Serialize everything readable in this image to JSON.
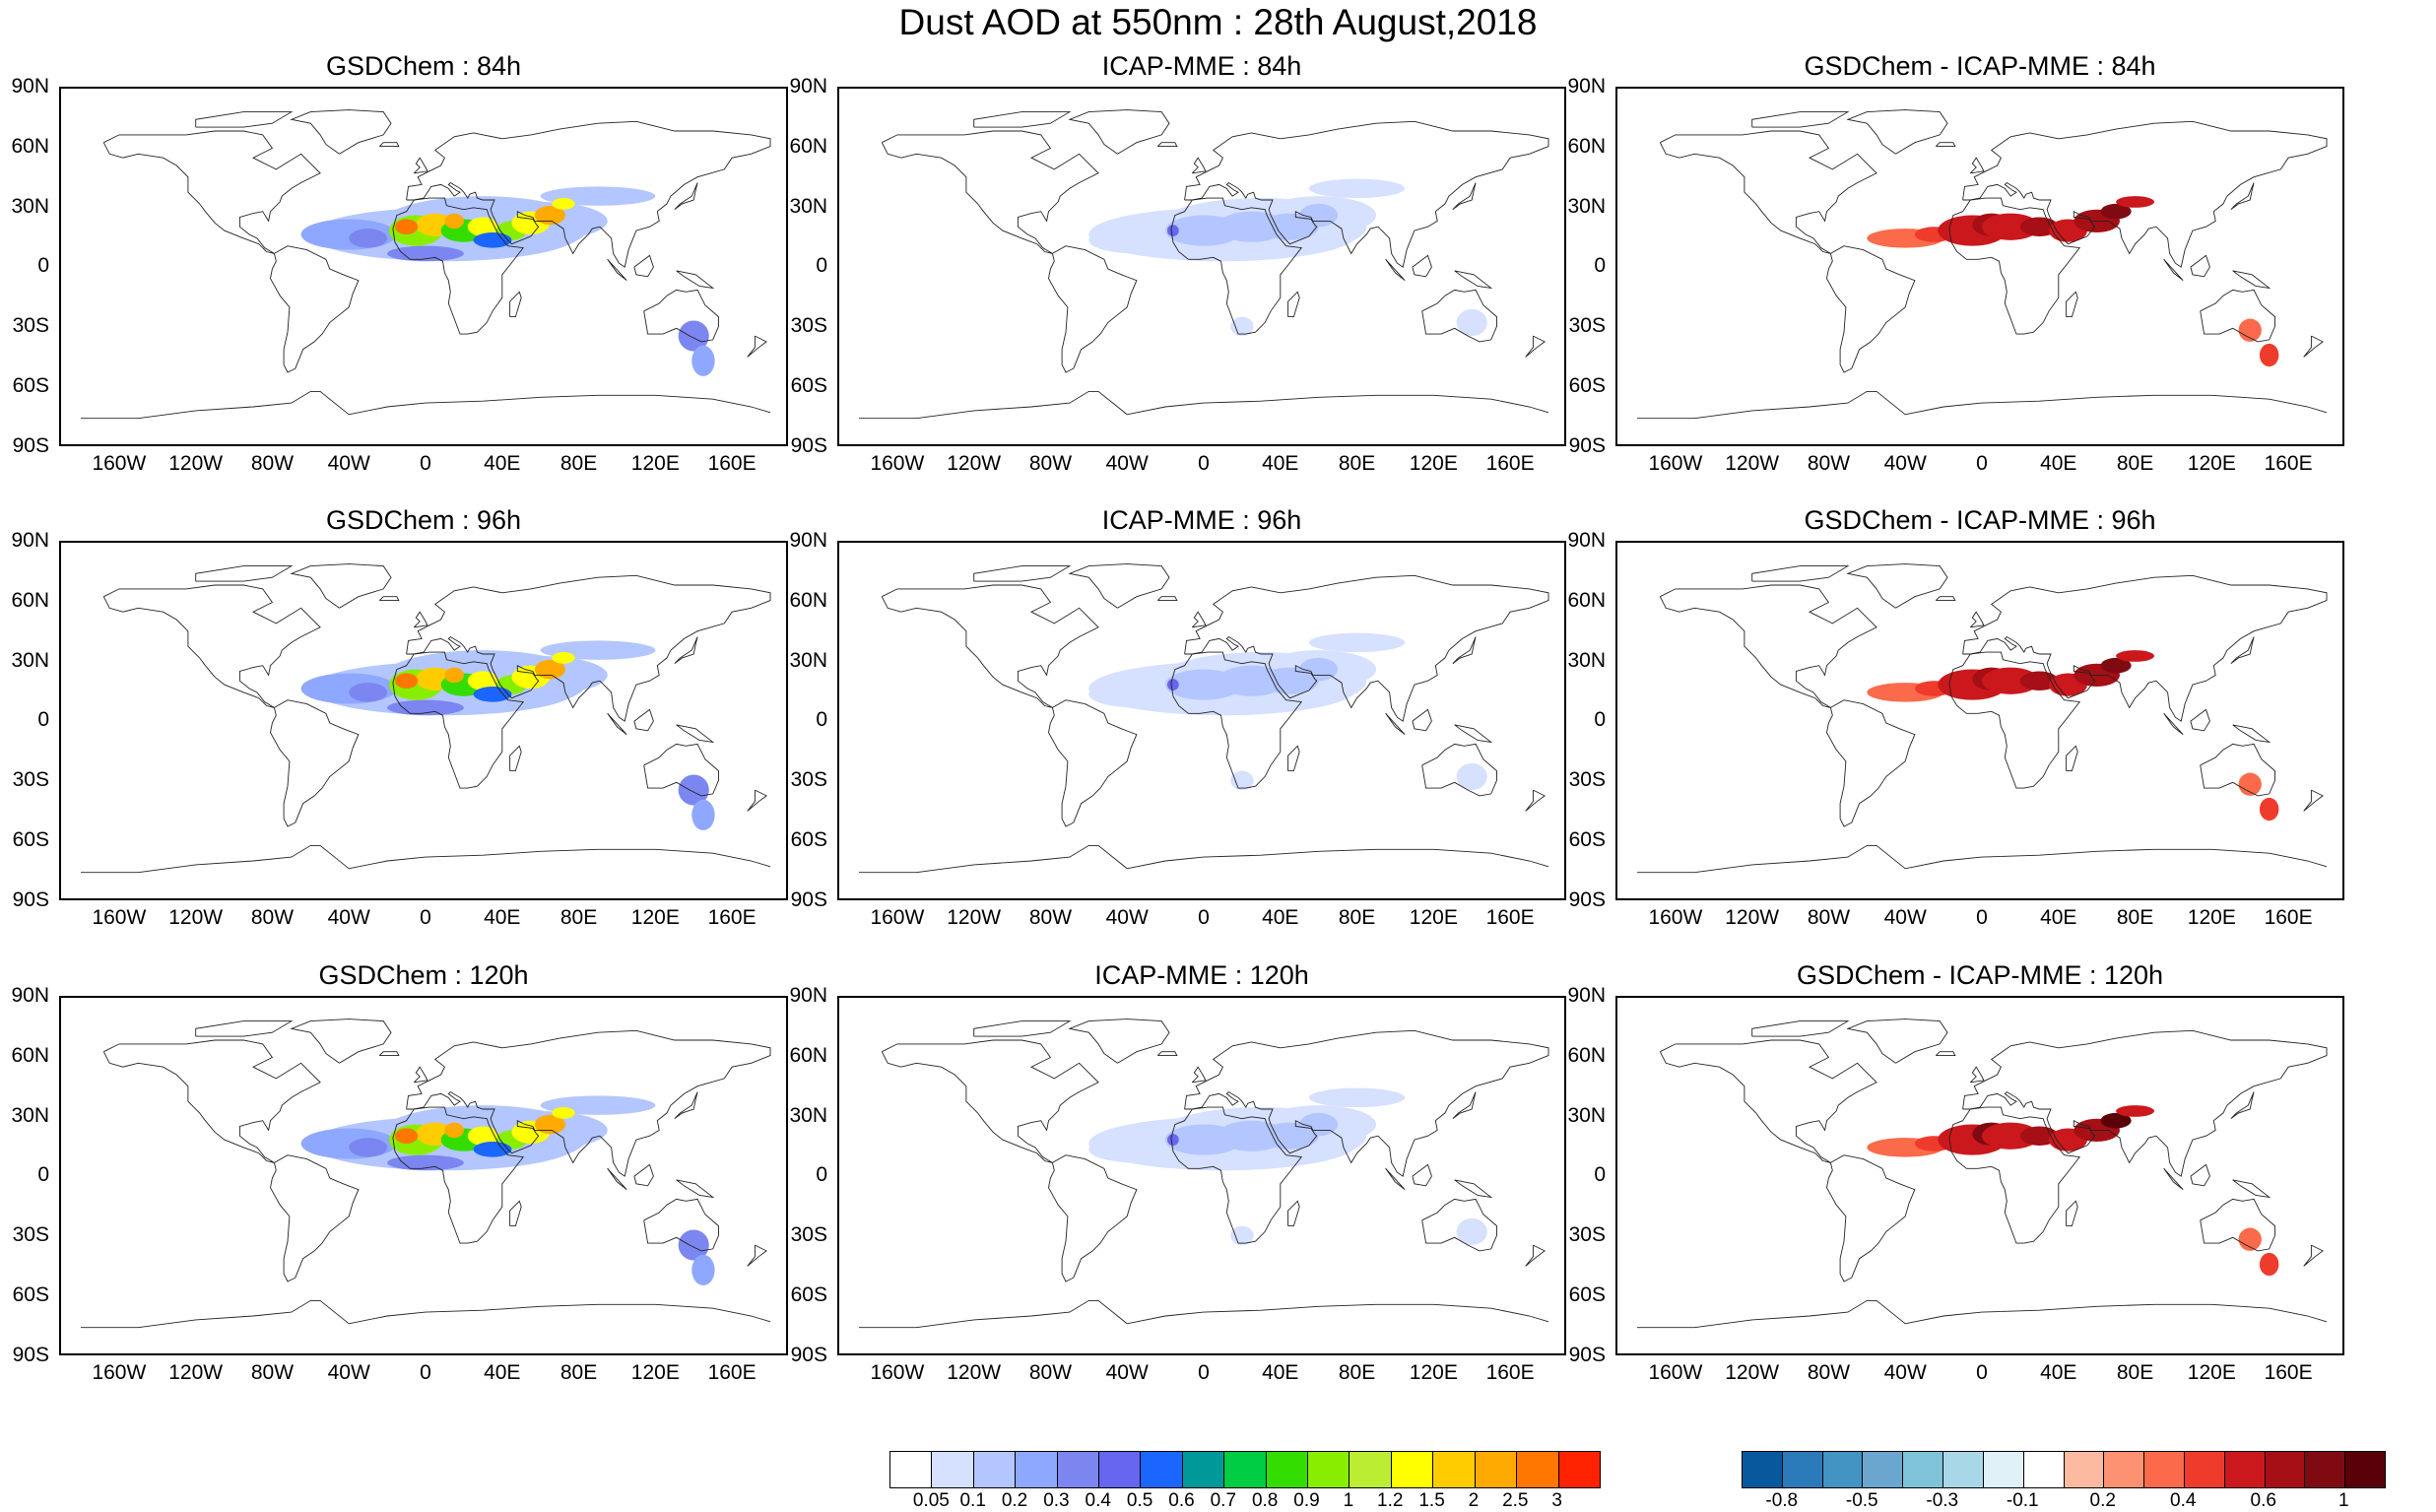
{
  "title": "Dust AOD at 550nm : 28th August,2018",
  "lat_ticks": [
    "90N",
    "60N",
    "30N",
    "0",
    "30S",
    "60S",
    "90S"
  ],
  "lon_ticks": [
    "160W",
    "120W",
    "80W",
    "40W",
    "0",
    "40E",
    "80E",
    "120E",
    "160E"
  ],
  "panels": [
    {
      "title": "GSDChem : 84h",
      "kind": "aod",
      "intensity": 1.0
    },
    {
      "title": "ICAP-MME : 84h",
      "kind": "icap",
      "intensity": 0.6
    },
    {
      "title": "GSDChem - ICAP-MME : 84h",
      "kind": "diff",
      "intensity": 1.0
    },
    {
      "title": "GSDChem : 96h",
      "kind": "aod",
      "intensity": 1.05
    },
    {
      "title": "ICAP-MME : 96h",
      "kind": "icap",
      "intensity": 0.6
    },
    {
      "title": "GSDChem - ICAP-MME : 96h",
      "kind": "diff",
      "intensity": 1.1
    },
    {
      "title": "GSDChem : 120h",
      "kind": "aod",
      "intensity": 1.0
    },
    {
      "title": "ICAP-MME : 120h",
      "kind": "icap",
      "intensity": 0.6
    },
    {
      "title": "GSDChem - ICAP-MME : 120h",
      "kind": "diff",
      "intensity": 1.15
    }
  ],
  "aod_colorbar": {
    "colors": [
      "#ffffff",
      "#d6e0ff",
      "#b3c6ff",
      "#8fa8ff",
      "#7b86f0",
      "#6666f0",
      "#1a66ff",
      "#009999",
      "#00cc44",
      "#33dd00",
      "#88ee00",
      "#bbee33",
      "#ffff00",
      "#ffcc00",
      "#ffaa00",
      "#ff7700",
      "#ff2200"
    ],
    "labels": [
      "0.05",
      "0.1",
      "0.2",
      "0.3",
      "0.4",
      "0.5",
      "0.6",
      "0.7",
      "0.8",
      "0.9",
      "1",
      "1.2",
      "1.5",
      "2",
      "2.5",
      "3"
    ]
  },
  "diff_colorbar": {
    "colors": [
      "#08589e",
      "#2b7bba",
      "#4393c3",
      "#6aa6cd",
      "#7fc3d8",
      "#a8d8e8",
      "#e0f1f7",
      "#ffffff",
      "#fcbba1",
      "#fc9272",
      "#fb6a4a",
      "#ef3b2c",
      "#cb181d",
      "#a50f15",
      "#800a12",
      "#5a0008"
    ],
    "labels": [
      "-0.8",
      "-0.5",
      "-0.3",
      "-0.1",
      "0.2",
      "0.4",
      "0.6",
      "1"
    ]
  }
}
